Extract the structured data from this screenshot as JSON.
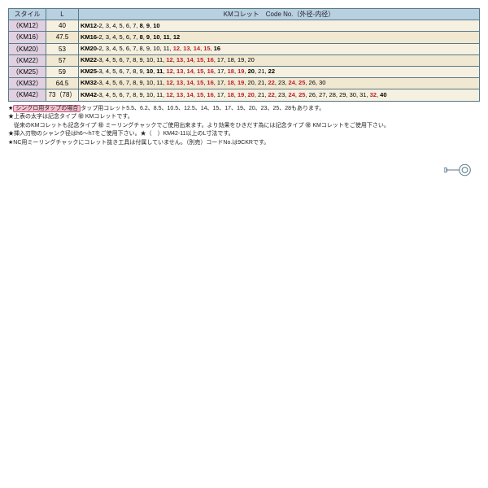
{
  "header": {
    "style": "スタイル",
    "L": "L",
    "code": "KMコレット　Code No.（外径-内径）"
  },
  "rows": [
    {
      "style": "（KM12）",
      "L": "40",
      "prefix": "KM12-",
      "sizes": [
        [
          "2",
          0
        ],
        [
          "3",
          0
        ],
        [
          "4",
          0
        ],
        [
          "5",
          0
        ],
        [
          "6",
          0
        ],
        [
          "7",
          0
        ],
        [
          "8",
          1
        ],
        [
          "9",
          1
        ],
        [
          "10",
          1
        ]
      ]
    },
    {
      "style": "（KM16）",
      "L": "47.5",
      "prefix": "KM16-",
      "sizes": [
        [
          "2",
          0
        ],
        [
          "3",
          0
        ],
        [
          "4",
          0
        ],
        [
          "5",
          0
        ],
        [
          "6",
          0
        ],
        [
          "7",
          0
        ],
        [
          "8",
          1
        ],
        [
          "9",
          1
        ],
        [
          "10",
          1
        ],
        [
          "11",
          1
        ],
        [
          "12",
          1
        ]
      ]
    },
    {
      "style": "（KM20）",
      "L": "53",
      "prefix": "KM20-",
      "sizes": [
        [
          "2",
          0
        ],
        [
          "3",
          0
        ],
        [
          "4",
          0
        ],
        [
          "5",
          0
        ],
        [
          "6",
          0
        ],
        [
          "7",
          0
        ],
        [
          "8",
          0
        ],
        [
          "9",
          0
        ],
        [
          "10",
          0
        ],
        [
          "11",
          0
        ],
        [
          "12",
          2
        ],
        [
          "13",
          2
        ],
        [
          "14",
          2
        ],
        [
          "15",
          2
        ],
        [
          "16",
          1
        ]
      ]
    },
    {
      "style": "（KM22）",
      "L": "57",
      "prefix": "KM22-",
      "sizes": [
        [
          "3",
          0
        ],
        [
          "4",
          0
        ],
        [
          "5",
          0
        ],
        [
          "6",
          0
        ],
        [
          "7",
          0
        ],
        [
          "8",
          0
        ],
        [
          "9",
          0
        ],
        [
          "10",
          0
        ],
        [
          "11",
          0
        ],
        [
          "12",
          2
        ],
        [
          "13",
          2
        ],
        [
          "14",
          2
        ],
        [
          "15",
          2
        ],
        [
          "16",
          2
        ],
        [
          "17",
          0
        ],
        [
          "18",
          0
        ],
        [
          "19",
          0
        ],
        [
          "20",
          0
        ]
      ]
    },
    {
      "style": "（KM25）",
      "L": "59",
      "prefix": "KM25-",
      "sizes": [
        [
          "3",
          0
        ],
        [
          "4",
          0
        ],
        [
          "5",
          0
        ],
        [
          "6",
          0
        ],
        [
          "7",
          0
        ],
        [
          "8",
          0
        ],
        [
          "9",
          0
        ],
        [
          "10",
          1
        ],
        [
          "11",
          1
        ],
        [
          "12",
          2
        ],
        [
          "13",
          2
        ],
        [
          "14",
          2
        ],
        [
          "15",
          2
        ],
        [
          "16",
          2
        ],
        [
          "17",
          0
        ],
        [
          "18",
          2
        ],
        [
          "19",
          2
        ],
        [
          "20",
          1
        ],
        [
          "21",
          0
        ],
        [
          "22",
          1
        ]
      ]
    },
    {
      "style": "（KM32）",
      "L": "64.5",
      "prefix": "KM32-",
      "sizes": [
        [
          "3",
          0
        ],
        [
          "4",
          0
        ],
        [
          "5",
          0
        ],
        [
          "6",
          0
        ],
        [
          "7",
          0
        ],
        [
          "8",
          0
        ],
        [
          "9",
          0
        ],
        [
          "10",
          0
        ],
        [
          "11",
          0
        ],
        [
          "12",
          2
        ],
        [
          "13",
          2
        ],
        [
          "14",
          2
        ],
        [
          "15",
          2
        ],
        [
          "16",
          2
        ],
        [
          "17",
          0
        ],
        [
          "18",
          2
        ],
        [
          "19",
          2
        ],
        [
          "20",
          0
        ],
        [
          "21",
          0
        ],
        [
          "22",
          2
        ],
        [
          "23",
          0
        ],
        [
          "24",
          2
        ],
        [
          "25",
          2
        ],
        [
          "26",
          0
        ],
        [
          "30",
          0
        ]
      ]
    },
    {
      "style": "（KM42）",
      "L": "73（78）",
      "prefix": "KM42-",
      "sizes": [
        [
          "3",
          0
        ],
        [
          "4",
          0
        ],
        [
          "5",
          0
        ],
        [
          "6",
          0
        ],
        [
          "7",
          0
        ],
        [
          "8",
          0
        ],
        [
          "9",
          0
        ],
        [
          "10",
          0
        ],
        [
          "11",
          0
        ],
        [
          "12",
          2
        ],
        [
          "13",
          2
        ],
        [
          "14",
          2
        ],
        [
          "15",
          2
        ],
        [
          "16",
          2
        ],
        [
          "17",
          0
        ],
        [
          "18",
          2
        ],
        [
          "19",
          2
        ],
        [
          "20",
          2
        ],
        [
          "21",
          0
        ],
        [
          "22",
          2
        ],
        [
          "23",
          0
        ],
        [
          "24",
          2
        ],
        [
          "25",
          2
        ],
        [
          "26",
          0
        ],
        [
          "27",
          0
        ],
        [
          "28",
          0
        ],
        [
          "29",
          0
        ],
        [
          "30",
          0
        ],
        [
          "31",
          0
        ],
        [
          "32",
          2
        ],
        [
          "40",
          1
        ]
      ]
    }
  ],
  "notes": {
    "n1a": "シンクロ用タップの場合",
    "n1b": "タップ用コレット5.5、6.2、8.5、10.5、12.5、14、15、17、19、20、23、25、28もあります。",
    "n2": "★上表の太字は記念タイプ ㊙ KMコレットです。",
    "n3": "　従来のKMコレットも記念タイプ ㊙ ミーリングチャックでご使用出来ます。より効果をひきだす為には記念タイプ ㊙ KMコレットをご使用下さい。",
    "n4": "★挿入刃物のシャンク径はh6〜h7をご使用下さい。★（　）KM42-11以上のL寸法です。",
    "n5": "★NC用ミーリングチャックにコレット抜き工具は付属していません。（別売）コードNo.は9CKRです。"
  }
}
